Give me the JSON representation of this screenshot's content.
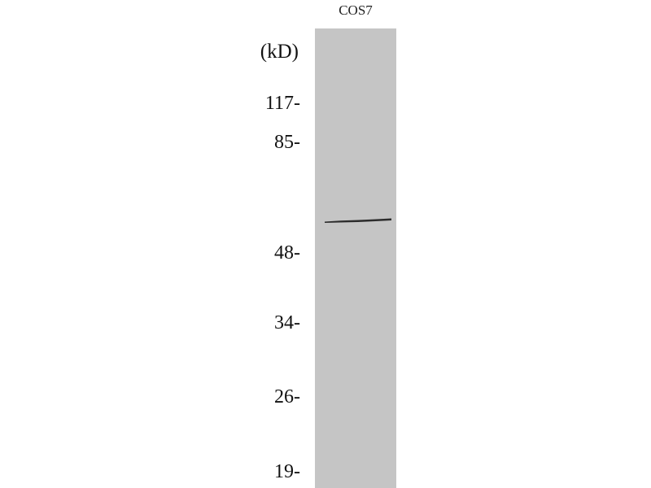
{
  "lane": {
    "label": "COS7",
    "color": "#c5c5c5"
  },
  "unit_label": "(kD)",
  "markers": [
    "117-",
    "85-",
    "48-",
    "34-",
    "26-",
    "19-"
  ],
  "band": {
    "color": "#1e1e1e"
  }
}
